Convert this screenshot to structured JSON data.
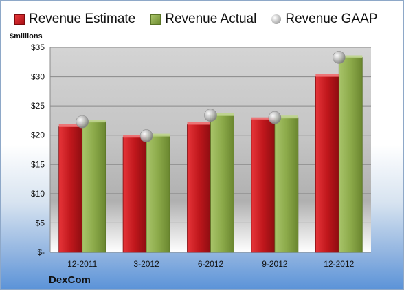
{
  "chart_data": {
    "type": "bar",
    "categories": [
      "12-2011",
      "3-2012",
      "6-2012",
      "9-2012",
      "12-2012"
    ],
    "series": [
      {
        "name": "Revenue Estimate",
        "values": [
          21.5,
          19.7,
          21.9,
          22.7,
          30.1
        ],
        "color": "#c0171c"
      },
      {
        "name": "Revenue Actual",
        "values": [
          22.3,
          19.9,
          23.4,
          23.0,
          33.3
        ],
        "color": "#8caa4a"
      },
      {
        "name": "Revenue GAAP",
        "values": [
          22.3,
          19.9,
          23.4,
          23.0,
          33.3
        ],
        "color": "#a9a9a9",
        "marker": "circle"
      }
    ],
    "ylabel": "$millions",
    "yticks": [
      "$-",
      "$5",
      "$10",
      "$15",
      "$20",
      "$25",
      "$30",
      "$35"
    ],
    "ylim": [
      0,
      35
    ],
    "grid": true,
    "legend": "top"
  },
  "company": "DexCom"
}
